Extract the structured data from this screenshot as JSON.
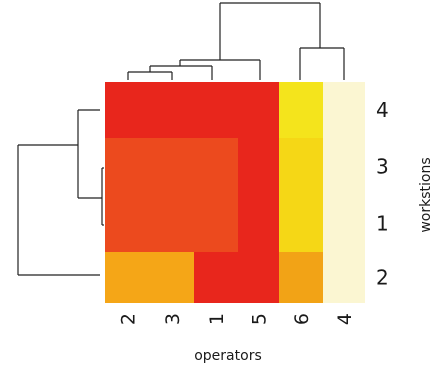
{
  "chart_data": {
    "type": "heatmap",
    "title": "",
    "xlabel": "operators",
    "ylabel": "workstions",
    "columns": [
      "2",
      "3",
      "1",
      "5",
      "6",
      "4"
    ],
    "rows": [
      "4",
      "3",
      "1",
      "2"
    ],
    "cells": [
      [
        "#e8261c",
        "#e8261c",
        "#e8261c",
        "#e8261c",
        "#f4e41c",
        "#fbf6d2"
      ],
      [
        "#ec4a1e",
        "#ec4a1e",
        "#ec4a1e",
        "#e8261c",
        "#f5d716",
        "#fbf6d2"
      ],
      [
        "#ec4a1e",
        "#ec4a1e",
        "#ec4a1e",
        "#e8261c",
        "#f5d716",
        "#fbf6d2"
      ],
      [
        "#f5a617",
        "#f5a617",
        "#e8261c",
        "#e8261c",
        "#f2a316",
        "#fbf6d2"
      ]
    ],
    "column_dendrogram": true,
    "row_dendrogram": true
  }
}
